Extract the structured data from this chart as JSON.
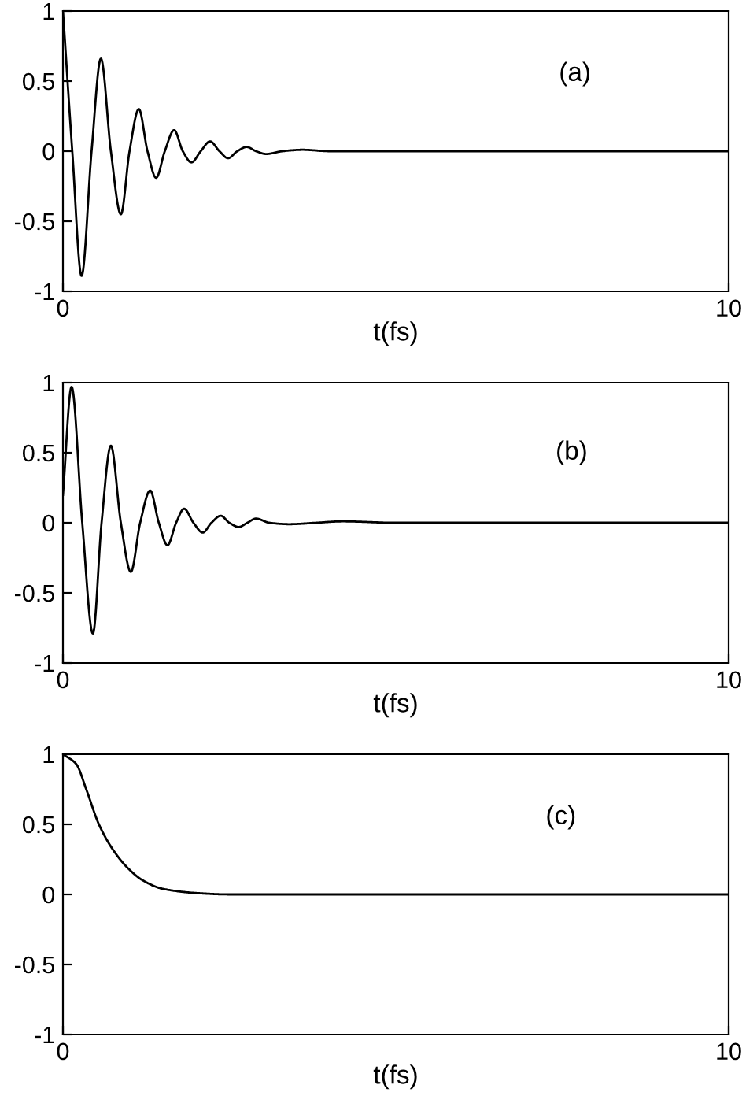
{
  "chart_data": [
    {
      "type": "line",
      "xlabel": "t(fs)",
      "annotations": [
        "(a)"
      ],
      "xlim": [
        0,
        10
      ],
      "ylim": [
        -1,
        1
      ],
      "xticks": [
        0,
        10
      ],
      "yticks": [
        -1,
        -0.5,
        0,
        0.5,
        1
      ],
      "grid": false,
      "legend": false,
      "line_style": "solid",
      "marker": "none",
      "series": [
        {
          "color": "#000000",
          "x": [
            0,
            0.14,
            0.28,
            0.43,
            0.57,
            0.72,
            0.87,
            1.0,
            1.14,
            1.27,
            1.4,
            1.53,
            1.67,
            1.8,
            1.93,
            2.07,
            2.21,
            2.35,
            2.48,
            2.62,
            2.76,
            2.9,
            3.05,
            3.3,
            3.6,
            4,
            5,
            6,
            7,
            8,
            10
          ],
          "values": [
            1,
            0,
            -0.89,
            0,
            0.66,
            0,
            -0.45,
            0,
            0.3,
            0,
            -0.19,
            0,
            0.15,
            0,
            -0.08,
            0,
            0.07,
            0,
            -0.05,
            0,
            0.03,
            0,
            -0.02,
            0,
            0.01,
            0,
            0,
            0,
            0,
            0,
            0
          ]
        }
      ]
    },
    {
      "type": "line",
      "xlabel": "t(fs)",
      "annotations": [
        "(b)"
      ],
      "xlim": [
        0,
        10
      ],
      "ylim": [
        -1,
        1
      ],
      "xticks": [
        0,
        10
      ],
      "yticks": [
        -1,
        -0.5,
        0,
        0.5,
        1
      ],
      "grid": false,
      "legend": false,
      "line_style": "solid",
      "marker": "none",
      "series": [
        {
          "color": "#000000",
          "x": [
            0,
            0.13,
            0.29,
            0.45,
            0.58,
            0.72,
            0.87,
            1.02,
            1.16,
            1.31,
            1.44,
            1.57,
            1.7,
            1.82,
            1.96,
            2.1,
            2.23,
            2.37,
            2.5,
            2.64,
            2.77,
            2.9,
            3.1,
            3.4,
            3.8,
            4.2,
            5,
            6,
            8,
            10
          ],
          "values": [
            0.2,
            0.97,
            0,
            -0.79,
            0,
            0.55,
            0,
            -0.35,
            0,
            0.23,
            0,
            -0.16,
            0,
            0.1,
            0,
            -0.07,
            0,
            0.05,
            0,
            -0.03,
            0,
            0.03,
            0,
            -0.01,
            0,
            0.01,
            0,
            0,
            0,
            0
          ]
        }
      ]
    },
    {
      "type": "line",
      "xlabel": "t(fs)",
      "annotations": [
        "(c)"
      ],
      "xlim": [
        0,
        10
      ],
      "ylim": [
        -1,
        1
      ],
      "xticks": [
        0,
        10
      ],
      "yticks": [
        -1,
        -0.5,
        0,
        0.5,
        1
      ],
      "grid": false,
      "legend": false,
      "line_style": "solid",
      "marker": "none",
      "series": [
        {
          "color": "#000000",
          "x": [
            0,
            0.2,
            0.35,
            0.54,
            0.75,
            0.97,
            1.2,
            1.5,
            2,
            2.5,
            10
          ],
          "values": [
            1,
            0.93,
            0.75,
            0.5,
            0.32,
            0.19,
            0.1,
            0.04,
            0.01,
            0,
            0
          ]
        }
      ]
    }
  ]
}
